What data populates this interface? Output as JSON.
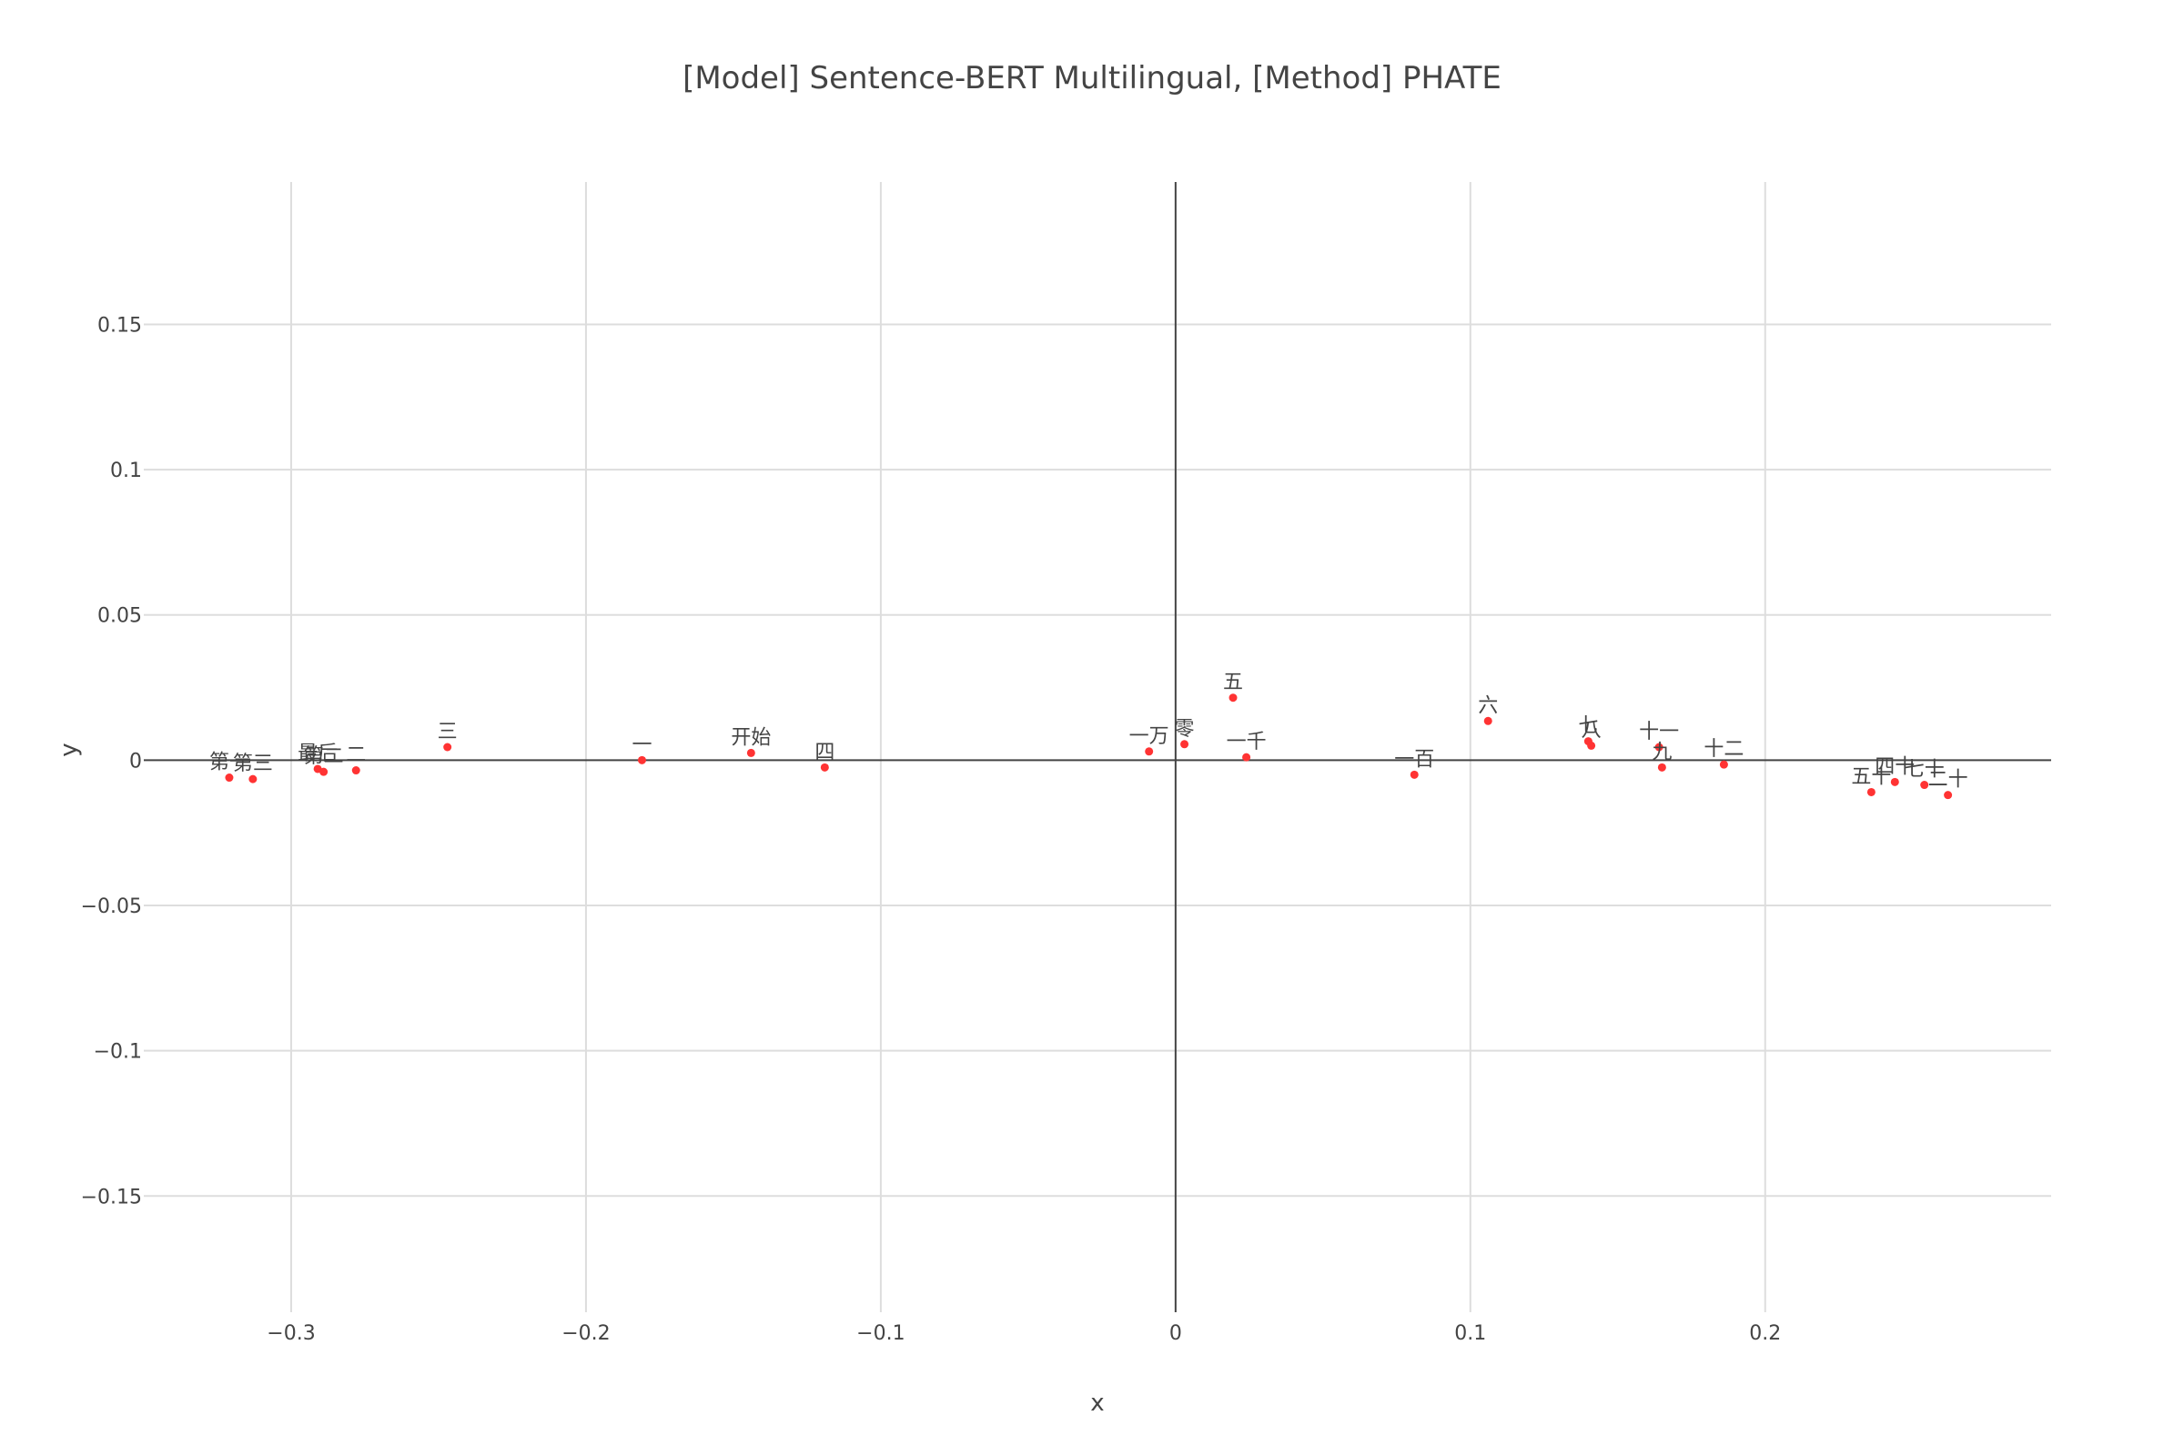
{
  "chart_data": {
    "type": "scatter",
    "title": "[Model] Sentence-BERT Multilingual, [Method] PHATE",
    "xlabel": "x",
    "ylabel": "y",
    "xlim": [
      -0.35,
      0.297
    ],
    "ylim": [
      -0.19,
      0.199
    ],
    "xticks": [
      -0.3,
      -0.2,
      -0.1,
      0,
      0.1,
      0.2
    ],
    "xtick_labels": [
      "−0.3",
      "−0.2",
      "−0.1",
      "0",
      "0.1",
      "0.2"
    ],
    "yticks": [
      -0.15,
      -0.1,
      -0.05,
      0,
      0.05,
      0.1,
      0.15
    ],
    "ytick_labels": [
      "−0.15",
      "−0.1",
      "−0.05",
      "0",
      "0.05",
      "0.1",
      "0.15"
    ],
    "grid": true,
    "marker_color": "#ff3333",
    "points": [
      {
        "label": "第一",
        "x": -0.321,
        "y": -0.006
      },
      {
        "label": "第三",
        "x": -0.313,
        "y": -0.0065
      },
      {
        "label": "最后",
        "x": -0.291,
        "y": -0.003
      },
      {
        "label": "第二",
        "x": -0.289,
        "y": -0.004
      },
      {
        "label": "二",
        "x": -0.278,
        "y": -0.0035
      },
      {
        "label": "三",
        "x": -0.247,
        "y": 0.0045
      },
      {
        "label": "一",
        "x": -0.181,
        "y": 0.0
      },
      {
        "label": "开始",
        "x": -0.144,
        "y": 0.0025
      },
      {
        "label": "四",
        "x": -0.119,
        "y": -0.0025
      },
      {
        "label": "一万",
        "x": -0.009,
        "y": 0.003
      },
      {
        "label": "零",
        "x": 0.003,
        "y": 0.0055
      },
      {
        "label": "五",
        "x": 0.0195,
        "y": 0.0215
      },
      {
        "label": "一千",
        "x": 0.024,
        "y": 0.001
      },
      {
        "label": "一百",
        "x": 0.081,
        "y": -0.005
      },
      {
        "label": "六",
        "x": 0.106,
        "y": 0.0135
      },
      {
        "label": "七",
        "x": 0.14,
        "y": 0.0065
      },
      {
        "label": "八",
        "x": 0.141,
        "y": 0.005
      },
      {
        "label": "十一",
        "x": 0.164,
        "y": 0.0045
      },
      {
        "label": "九",
        "x": 0.165,
        "y": -0.0025
      },
      {
        "label": "十二",
        "x": 0.186,
        "y": -0.0015
      },
      {
        "label": "五十",
        "x": 0.236,
        "y": -0.011
      },
      {
        "label": "四十",
        "x": 0.244,
        "y": -0.0075
      },
      {
        "label": "七十",
        "x": 0.254,
        "y": -0.0085
      },
      {
        "label": "二十",
        "x": 0.262,
        "y": -0.012
      }
    ]
  }
}
